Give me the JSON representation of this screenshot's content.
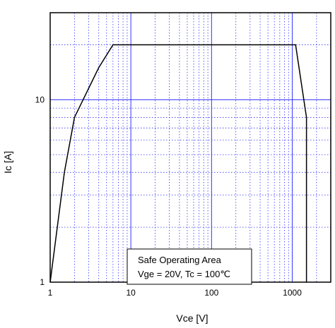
{
  "chart_data": {
    "type": "line",
    "xlabel": "Vce [V]",
    "ylabel": "Ic [A]",
    "x_scale": "log",
    "y_scale": "log",
    "xlim": [
      1,
      3000
    ],
    "ylim": [
      1,
      30
    ],
    "x_ticks": [
      {
        "value": 1,
        "label": "1"
      },
      {
        "value": 10,
        "label": "10"
      },
      {
        "value": 100,
        "label": "100"
      },
      {
        "value": 1000,
        "label": "1000"
      }
    ],
    "y_ticks": [
      {
        "value": 1,
        "label": "1"
      },
      {
        "value": 10,
        "label": "10"
      }
    ],
    "grid": true,
    "series": [
      {
        "x": [
          1,
          1.5,
          2,
          4,
          6,
          1100,
          1500,
          1500
        ],
        "y": [
          1,
          4,
          8,
          15,
          20,
          20,
          8,
          1
        ]
      }
    ],
    "annotation": {
      "lines": [
        "Safe Operating Area",
        "Vge = 20V, Tc = 100℃"
      ]
    },
    "colors": {
      "major_grid": "#3333ff",
      "minor_grid": "#3333ff",
      "series": "#000000",
      "frame": "#000000"
    }
  }
}
